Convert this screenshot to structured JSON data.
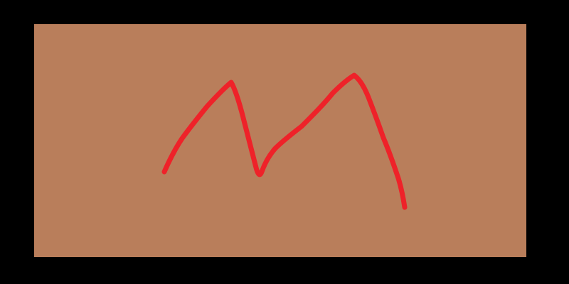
{
  "colors": {
    "background": "#000000",
    "canvas": "#B97E5B",
    "stroke": "#EE2229"
  },
  "drawing": {
    "content": "handwritten-letter-m"
  }
}
